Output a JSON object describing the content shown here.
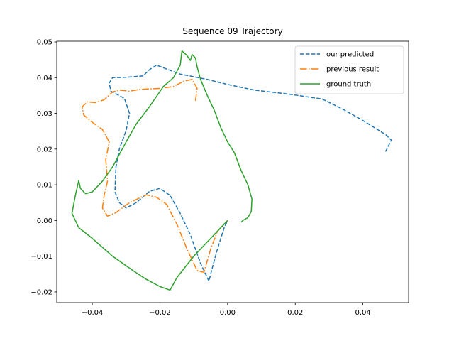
{
  "chart_data": {
    "type": "line",
    "title": "Sequence 09 Trajectory",
    "xlabel": "",
    "ylabel": "",
    "xlim": [
      -0.0505,
      0.0535
    ],
    "ylim": [
      -0.023,
      0.0502
    ],
    "xticks": [
      -0.04,
      -0.02,
      0.0,
      0.02,
      0.04
    ],
    "xtick_labels": [
      "−0.04",
      "−0.02",
      "0.00",
      "0.02",
      "0.04"
    ],
    "yticks": [
      -0.02,
      -0.01,
      0.0,
      0.01,
      0.02,
      0.03,
      0.04,
      0.05
    ],
    "ytick_labels": [
      "−0.02",
      "−0.01",
      "0.00",
      "0.01",
      "0.02",
      "0.03",
      "0.04",
      "0.05"
    ],
    "grid": false,
    "legend_position": "top-right",
    "series": [
      {
        "name": "our predicted",
        "color": "#1f77b4",
        "style": "dashed",
        "points": [
          [
            0.0467,
            0.0193
          ],
          [
            0.0484,
            0.0225
          ],
          [
            0.0468,
            0.024
          ],
          [
            0.04,
            0.028
          ],
          [
            0.034,
            0.0312
          ],
          [
            0.028,
            0.034
          ],
          [
            0.018,
            0.0354
          ],
          [
            0.008,
            0.0365
          ],
          [
            0.0,
            0.0381
          ],
          [
            -0.006,
            0.0395
          ],
          [
            -0.014,
            0.041
          ],
          [
            -0.018,
            0.0424
          ],
          [
            -0.021,
            0.0435
          ],
          [
            -0.023,
            0.0423
          ],
          [
            -0.025,
            0.0405
          ],
          [
            -0.03,
            0.0401
          ],
          [
            -0.034,
            0.04
          ],
          [
            -0.035,
            0.0385
          ],
          [
            -0.0345,
            0.0362
          ],
          [
            -0.0305,
            0.0342
          ],
          [
            -0.029,
            0.03
          ],
          [
            -0.03,
            0.0252
          ],
          [
            -0.032,
            0.02
          ],
          [
            -0.033,
            0.015
          ],
          [
            -0.0333,
            0.008
          ],
          [
            -0.032,
            0.005
          ],
          [
            -0.03,
            0.0035
          ],
          [
            -0.027,
            0.005
          ],
          [
            -0.023,
            0.0082
          ],
          [
            -0.02,
            0.009
          ],
          [
            -0.017,
            0.007
          ],
          [
            -0.014,
            0.002
          ],
          [
            -0.011,
            -0.004
          ],
          [
            -0.008,
            -0.012
          ],
          [
            -0.0055,
            -0.017
          ],
          [
            -0.005,
            -0.015
          ],
          [
            -0.003,
            -0.008
          ],
          [
            -0.001,
            -0.002
          ],
          [
            0.0,
            0.0
          ]
        ]
      },
      {
        "name": "previous result",
        "color": "#ff7f0e",
        "style": "dashdot",
        "points": [
          [
            -0.0095,
            0.0335
          ],
          [
            -0.009,
            0.037
          ],
          [
            -0.0105,
            0.0395
          ],
          [
            -0.013,
            0.039
          ],
          [
            -0.016,
            0.0375
          ],
          [
            -0.02,
            0.037
          ],
          [
            -0.026,
            0.0367
          ],
          [
            -0.029,
            0.0362
          ],
          [
            -0.032,
            0.0365
          ],
          [
            -0.034,
            0.036
          ],
          [
            -0.0365,
            0.0338
          ],
          [
            -0.039,
            0.033
          ],
          [
            -0.0415,
            0.0332
          ],
          [
            -0.043,
            0.0318
          ],
          [
            -0.0425,
            0.0295
          ],
          [
            -0.04,
            0.0275
          ],
          [
            -0.037,
            0.0255
          ],
          [
            -0.035,
            0.022
          ],
          [
            -0.036,
            0.017
          ],
          [
            -0.0355,
            0.011
          ],
          [
            -0.0365,
            0.007
          ],
          [
            -0.037,
            0.0035
          ],
          [
            -0.0355,
            0.0012
          ],
          [
            -0.033,
            0.0022
          ],
          [
            -0.029,
            0.005
          ],
          [
            -0.024,
            0.0072
          ],
          [
            -0.021,
            0.0065
          ],
          [
            -0.018,
            0.0045
          ],
          [
            -0.015,
            -0.001
          ],
          [
            -0.012,
            -0.008
          ],
          [
            -0.009,
            -0.014
          ],
          [
            -0.007,
            -0.0145
          ],
          [
            -0.005,
            -0.008
          ],
          [
            -0.003,
            -0.003
          ],
          [
            0.0,
            0.0
          ]
        ]
      },
      {
        "name": "ground truth",
        "color": "#2ca02c",
        "style": "solid",
        "points": [
          [
            0.004,
            -0.0005
          ],
          [
            0.0045,
            0.0
          ],
          [
            0.006,
            0.0008
          ],
          [
            0.007,
            0.0025
          ],
          [
            0.0072,
            0.006
          ],
          [
            0.006,
            0.01
          ],
          [
            0.004,
            0.014
          ],
          [
            0.002,
            0.019
          ],
          [
            0.0,
            0.022
          ],
          [
            -0.002,
            0.026
          ],
          [
            -0.004,
            0.031
          ],
          [
            -0.006,
            0.035
          ],
          [
            -0.008,
            0.0395
          ],
          [
            -0.009,
            0.043
          ],
          [
            -0.0095,
            0.0455
          ],
          [
            -0.0105,
            0.0465
          ],
          [
            -0.011,
            0.0448
          ],
          [
            -0.012,
            0.0462
          ],
          [
            -0.0135,
            0.0475
          ],
          [
            -0.014,
            0.0435
          ],
          [
            -0.016,
            0.04
          ],
          [
            -0.019,
            0.0375
          ],
          [
            -0.023,
            0.032
          ],
          [
            -0.027,
            0.027
          ],
          [
            -0.03,
            0.022
          ],
          [
            -0.034,
            0.015
          ],
          [
            -0.037,
            0.011
          ],
          [
            -0.04,
            0.008
          ],
          [
            -0.042,
            0.0075
          ],
          [
            -0.0435,
            0.009
          ],
          [
            -0.044,
            0.0112
          ],
          [
            -0.045,
            0.007
          ],
          [
            -0.046,
            0.002
          ],
          [
            -0.044,
            -0.002
          ],
          [
            -0.04,
            -0.005
          ],
          [
            -0.034,
            -0.01
          ],
          [
            -0.028,
            -0.014
          ],
          [
            -0.024,
            -0.0165
          ],
          [
            -0.02,
            -0.0185
          ],
          [
            -0.017,
            -0.0195
          ],
          [
            -0.015,
            -0.016
          ],
          [
            -0.01,
            -0.01
          ],
          [
            -0.005,
            -0.005
          ],
          [
            -0.002,
            -0.002
          ],
          [
            0.0,
            0.0
          ]
        ]
      }
    ]
  }
}
